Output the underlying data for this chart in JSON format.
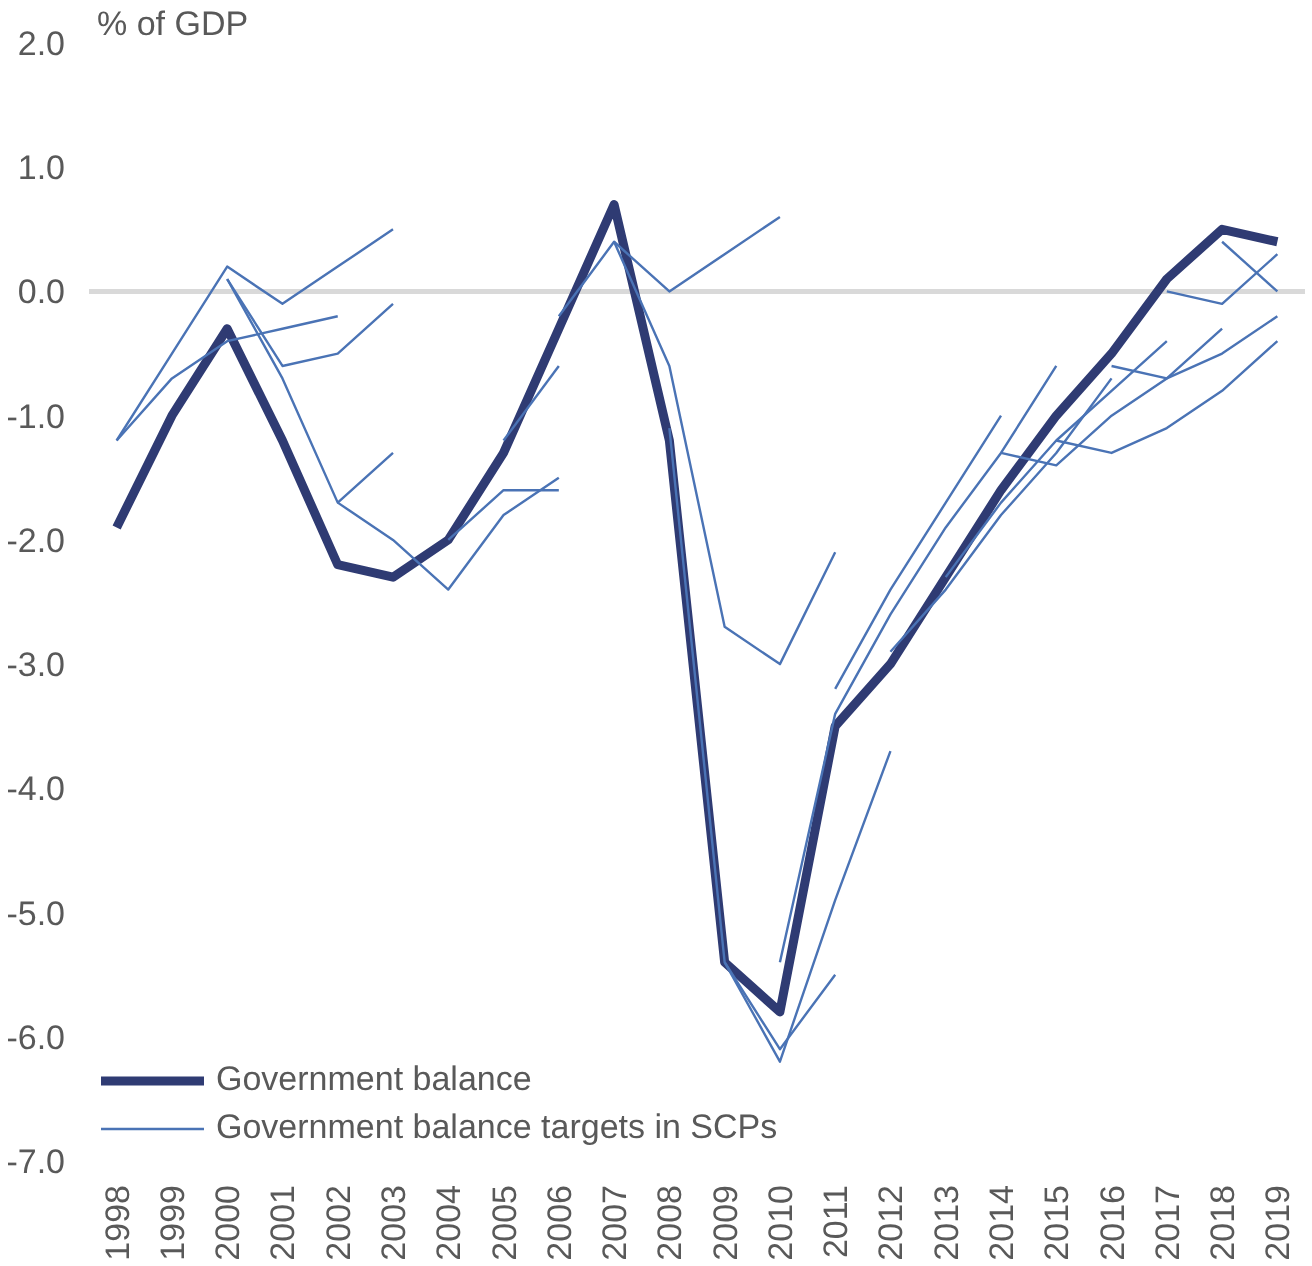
{
  "chart_data": {
    "type": "line",
    "ylabel": "% of GDP",
    "categories": [
      "1998",
      "1999",
      "2000",
      "2001",
      "2002",
      "2003",
      "2004",
      "2005",
      "2006",
      "2007",
      "2008",
      "2009",
      "2010",
      "2011",
      "2012",
      "2013",
      "2014",
      "2015",
      "2016",
      "2017",
      "2018",
      "2019"
    ],
    "ylim": [
      -7,
      2
    ],
    "yticks": [
      {
        "value": 2,
        "label": "2.0"
      },
      {
        "value": 1,
        "label": "1.0"
      },
      {
        "value": 0,
        "label": "0.0"
      },
      {
        "value": -1,
        "label": "-1.0"
      },
      {
        "value": -2,
        "label": "-2.0"
      },
      {
        "value": -3,
        "label": "-3.0"
      },
      {
        "value": -4,
        "label": "-4.0"
      },
      {
        "value": -5,
        "label": "-5.0"
      },
      {
        "value": -6,
        "label": "-6.0"
      },
      {
        "value": -7,
        "label": "-7.0"
      }
    ],
    "ref_lines": [
      {
        "axis": "y",
        "value": 0,
        "color": "#d9d9d9"
      }
    ],
    "legend": "bottom left",
    "series": [
      {
        "name": "Government balance",
        "color": "#2f3b73",
        "values": [
          -1.9,
          -1.0,
          -0.3,
          -1.2,
          -2.2,
          -2.3,
          -2.0,
          -1.3,
          -0.3,
          0.7,
          -1.2,
          -5.4,
          -5.8,
          -3.5,
          -3.0,
          -2.3,
          -1.6,
          -1.0,
          -0.5,
          0.1,
          0.5,
          0.4
        ]
      },
      {
        "name": "Government balance targets in SCPs",
        "color": "#4a73b5",
        "values": [
          -1.2,
          -0.5,
          0.2,
          -0.1,
          0.2,
          0.5,
          null,
          null,
          null,
          null,
          null,
          null,
          null,
          null,
          null,
          null,
          null,
          null,
          null,
          null,
          null,
          null
        ]
      },
      {
        "color": "#4a73b5",
        "values": [
          -1.2,
          -0.7,
          -0.4,
          -0.3,
          -0.2,
          null,
          null,
          null,
          null,
          null,
          null,
          null,
          null,
          null,
          null,
          null,
          null,
          null,
          null,
          null,
          null,
          null
        ]
      },
      {
        "color": "#4a73b5",
        "values": [
          null,
          null,
          0.1,
          -0.6,
          -0.5,
          -0.1,
          null,
          null,
          null,
          null,
          null,
          null,
          null,
          null,
          null,
          null,
          null,
          null,
          null,
          null,
          null,
          null
        ]
      },
      {
        "color": "#4a73b5",
        "values": [
          null,
          null,
          0.1,
          -0.7,
          -1.7,
          -1.3,
          null,
          null,
          null,
          null,
          null,
          null,
          null,
          null,
          null,
          null,
          null,
          null,
          null,
          null,
          null,
          null
        ]
      },
      {
        "color": "#4a73b5",
        "values": [
          null,
          null,
          null,
          null,
          -1.7,
          -2.0,
          -2.4,
          -1.8,
          -1.5,
          null,
          null,
          null,
          null,
          null,
          null,
          null,
          null,
          null,
          null,
          null,
          null,
          null
        ]
      },
      {
        "color": "#4a73b5",
        "values": [
          null,
          null,
          null,
          null,
          null,
          null,
          -2.0,
          -1.6,
          -1.6,
          null,
          null,
          null,
          null,
          null,
          null,
          null,
          null,
          null,
          null,
          null,
          null,
          null
        ]
      },
      {
        "color": "#4a73b5",
        "values": [
          null,
          null,
          null,
          null,
          null,
          null,
          null,
          -1.2,
          -0.6,
          null,
          null,
          null,
          null,
          null,
          null,
          null,
          null,
          null,
          null,
          null,
          null,
          null
        ]
      },
      {
        "color": "#4a73b5",
        "values": [
          null,
          null,
          null,
          null,
          null,
          null,
          null,
          null,
          -0.2,
          0.4,
          0.0,
          0.3,
          0.6,
          null,
          null,
          null,
          null,
          null,
          null,
          null,
          null,
          null
        ]
      },
      {
        "color": "#4a73b5",
        "values": [
          null,
          null,
          null,
          null,
          null,
          null,
          null,
          null,
          null,
          0.4,
          -0.6,
          -2.7,
          -3.0,
          -2.1,
          null,
          null,
          null,
          null,
          null,
          null,
          null,
          null
        ]
      },
      {
        "color": "#4a73b5",
        "values": [
          null,
          null,
          null,
          null,
          null,
          null,
          null,
          null,
          null,
          null,
          -1.1,
          -5.4,
          -6.1,
          -5.5,
          null,
          null,
          null,
          null,
          null,
          null,
          null,
          null
        ]
      },
      {
        "color": "#4a73b5",
        "values": [
          null,
          null,
          null,
          null,
          null,
          null,
          null,
          null,
          null,
          null,
          null,
          -5.4,
          -6.2,
          -4.9,
          -3.7,
          null,
          null,
          null,
          null,
          null,
          null,
          null
        ]
      },
      {
        "color": "#4a73b5",
        "values": [
          null,
          null,
          null,
          null,
          null,
          null,
          null,
          null,
          null,
          null,
          null,
          null,
          -5.4,
          -3.4,
          -2.6,
          -1.9,
          -1.3,
          -0.6,
          null,
          null,
          null,
          null
        ]
      },
      {
        "color": "#4a73b5",
        "values": [
          null,
          null,
          null,
          null,
          null,
          null,
          null,
          null,
          null,
          null,
          null,
          null,
          null,
          -3.2,
          -2.4,
          -1.7,
          -1.0,
          null,
          null,
          null,
          null,
          null
        ]
      },
      {
        "color": "#4a73b5",
        "values": [
          null,
          null,
          null,
          null,
          null,
          null,
          null,
          null,
          null,
          null,
          null,
          null,
          null,
          null,
          -2.9,
          -2.4,
          -1.8,
          -1.3,
          -0.7,
          null,
          null,
          null
        ]
      },
      {
        "color": "#4a73b5",
        "values": [
          null,
          null,
          null,
          null,
          null,
          null,
          null,
          null,
          null,
          null,
          null,
          null,
          null,
          null,
          null,
          -2.3,
          -1.7,
          -1.2,
          -0.8,
          -0.4,
          null,
          null
        ]
      },
      {
        "color": "#4a73b5",
        "values": [
          null,
          null,
          null,
          null,
          null,
          null,
          null,
          null,
          null,
          null,
          null,
          null,
          null,
          null,
          null,
          null,
          -1.3,
          -1.4,
          -1.0,
          -0.7,
          -0.3,
          null
        ]
      },
      {
        "color": "#4a73b5",
        "values": [
          null,
          null,
          null,
          null,
          null,
          null,
          null,
          null,
          null,
          null,
          null,
          null,
          null,
          null,
          null,
          null,
          null,
          -1.2,
          -1.3,
          -1.1,
          -0.8,
          -0.4
        ]
      },
      {
        "color": "#4a73b5",
        "values": [
          null,
          null,
          null,
          null,
          null,
          null,
          null,
          null,
          null,
          null,
          null,
          null,
          null,
          null,
          null,
          null,
          null,
          null,
          -0.6,
          -0.7,
          -0.5,
          -0.2
        ]
      },
      {
        "color": "#4a73b5",
        "values": [
          null,
          null,
          null,
          null,
          null,
          null,
          null,
          null,
          null,
          null,
          null,
          null,
          null,
          null,
          null,
          null,
          null,
          null,
          null,
          0.0,
          -0.1,
          0.3
        ]
      },
      {
        "color": "#4a73b5",
        "values": [
          null,
          null,
          null,
          null,
          null,
          null,
          null,
          null,
          null,
          null,
          null,
          null,
          null,
          null,
          null,
          null,
          null,
          null,
          null,
          null,
          0.4,
          0.0
        ]
      }
    ]
  }
}
